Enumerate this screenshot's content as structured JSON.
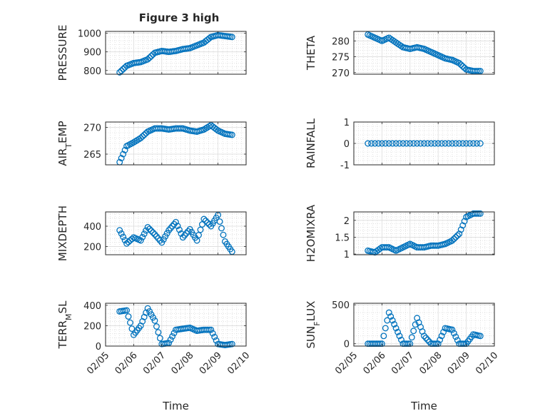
{
  "figure": {
    "title": "Figure 3 high",
    "xlabel": "Time"
  },
  "chart_data": [
    {
      "type": "scatter",
      "ylabel": "PRESSURE",
      "ylim": [
        780,
        1010
      ],
      "yticks": [
        800,
        900,
        1000
      ],
      "grid": true,
      "color": "#0072BD",
      "x": [
        "2017-02-05T12:00",
        "2017-02-05T18:00",
        "2017-02-06T00:00",
        "2017-02-06T06:00",
        "2017-02-06T12:00",
        "2017-02-06T18:00",
        "2017-02-07T00:00",
        "2017-02-07T06:00",
        "2017-02-07T12:00",
        "2017-02-07T18:00",
        "2017-02-08T00:00",
        "2017-02-08T06:00",
        "2017-02-08T12:00",
        "2017-02-08T18:00",
        "2017-02-09T00:00",
        "2017-02-09T06:00",
        "2017-02-09T12:00"
      ],
      "y": [
        790,
        825,
        840,
        845,
        860,
        895,
        905,
        900,
        905,
        915,
        920,
        935,
        950,
        980,
        990,
        985,
        980
      ]
    },
    {
      "type": "scatter",
      "ylabel": "THETA",
      "ylim": [
        269.5,
        283
      ],
      "yticks": [
        270,
        275,
        280
      ],
      "grid": true,
      "color": "#0072BD",
      "x": [
        "2017-02-05T12:00",
        "2017-02-05T18:00",
        "2017-02-06T00:00",
        "2017-02-06T06:00",
        "2017-02-06T12:00",
        "2017-02-06T18:00",
        "2017-02-07T00:00",
        "2017-02-07T06:00",
        "2017-02-07T12:00",
        "2017-02-07T18:00",
        "2017-02-08T00:00",
        "2017-02-08T06:00",
        "2017-02-08T12:00",
        "2017-02-08T18:00",
        "2017-02-09T00:00",
        "2017-02-09T06:00",
        "2017-02-09T12:00"
      ],
      "y": [
        282,
        281,
        280,
        281,
        279.5,
        278,
        277.5,
        278,
        277.5,
        276.5,
        275.5,
        274.5,
        274,
        273,
        271,
        270.5,
        270.5
      ]
    },
    {
      "type": "scatter",
      "ylabel": "AIR_TEMP",
      "ylabel_parts": [
        "AIR",
        "T",
        "EMP"
      ],
      "ylim": [
        263,
        271
      ],
      "yticks": [
        265,
        270
      ],
      "grid": true,
      "color": "#0072BD",
      "x": [
        "2017-02-05T12:00",
        "2017-02-05T18:00",
        "2017-02-06T00:00",
        "2017-02-06T06:00",
        "2017-02-06T12:00",
        "2017-02-06T18:00",
        "2017-02-07T00:00",
        "2017-02-07T06:00",
        "2017-02-07T12:00",
        "2017-02-07T18:00",
        "2017-02-08T00:00",
        "2017-02-08T06:00",
        "2017-02-08T12:00",
        "2017-02-08T18:00",
        "2017-02-09T00:00",
        "2017-02-09T06:00",
        "2017-02-09T12:00"
      ],
      "y": [
        263.5,
        266.5,
        267.2,
        268,
        269.2,
        269.8,
        269.8,
        269.6,
        269.8,
        269.8,
        269.4,
        269.2,
        269.6,
        270.4,
        269.4,
        268.8,
        268.6
      ]
    },
    {
      "type": "scatter",
      "ylabel": "RAINFALL",
      "ylim": [
        -1,
        1
      ],
      "yticks": [
        -1,
        0,
        1
      ],
      "grid": true,
      "color": "#0072BD",
      "x": [
        "2017-02-05T12:00",
        "2017-02-06T00:00",
        "2017-02-06T12:00",
        "2017-02-07T00:00",
        "2017-02-07T12:00",
        "2017-02-08T00:00",
        "2017-02-08T12:00",
        "2017-02-09T00:00",
        "2017-02-09T12:00"
      ],
      "y": [
        0,
        0,
        0,
        0,
        0,
        0,
        0,
        0,
        0
      ]
    },
    {
      "type": "scatter",
      "ylabel": "MIXDEPTH",
      "ylim": [
        120,
        540
      ],
      "yticks": [
        200,
        400
      ],
      "grid": true,
      "color": "#0072BD",
      "x": [
        "2017-02-05T12:00",
        "2017-02-05T18:00",
        "2017-02-06T00:00",
        "2017-02-06T06:00",
        "2017-02-06T12:00",
        "2017-02-06T18:00",
        "2017-02-07T00:00",
        "2017-02-07T06:00",
        "2017-02-07T12:00",
        "2017-02-07T18:00",
        "2017-02-08T00:00",
        "2017-02-08T06:00",
        "2017-02-08T12:00",
        "2017-02-08T18:00",
        "2017-02-09T00:00",
        "2017-02-09T06:00",
        "2017-02-09T12:00"
      ],
      "y": [
        360,
        230,
        290,
        260,
        390,
        320,
        240,
        360,
        440,
        290,
        370,
        260,
        470,
        400,
        510,
        250,
        150
      ]
    },
    {
      "type": "scatter",
      "ylabel": "H2OMIXRA",
      "ylim": [
        0.98,
        2.25
      ],
      "yticks": [
        1,
        1.5,
        2
      ],
      "grid": true,
      "color": "#0072BD",
      "x": [
        "2017-02-05T12:00",
        "2017-02-05T18:00",
        "2017-02-06T00:00",
        "2017-02-06T06:00",
        "2017-02-06T12:00",
        "2017-02-06T18:00",
        "2017-02-07T00:00",
        "2017-02-07T06:00",
        "2017-02-07T12:00",
        "2017-02-07T18:00",
        "2017-02-08T00:00",
        "2017-02-08T06:00",
        "2017-02-08T12:00",
        "2017-02-08T18:00",
        "2017-02-09T00:00",
        "2017-02-09T06:00",
        "2017-02-09T12:00"
      ],
      "y": [
        1.1,
        1.05,
        1.2,
        1.2,
        1.1,
        1.2,
        1.3,
        1.2,
        1.2,
        1.25,
        1.25,
        1.3,
        1.4,
        1.6,
        2.1,
        2.2,
        2.2
      ]
    },
    {
      "type": "scatter",
      "ylabel": "TERR_MSL",
      "ylabel_parts": [
        "TERR",
        "M",
        "SL"
      ],
      "ylim": [
        0,
        420
      ],
      "yticks": [
        0,
        200,
        400
      ],
      "grid": true,
      "color": "#0072BD",
      "x": [
        "2017-02-05T12:00",
        "2017-02-05T18:00",
        "2017-02-06T00:00",
        "2017-02-06T06:00",
        "2017-02-06T12:00",
        "2017-02-06T18:00",
        "2017-02-07T00:00",
        "2017-02-07T06:00",
        "2017-02-07T12:00",
        "2017-02-07T18:00",
        "2017-02-08T00:00",
        "2017-02-08T06:00",
        "2017-02-08T12:00",
        "2017-02-08T18:00",
        "2017-02-09T00:00",
        "2017-02-09T06:00",
        "2017-02-09T12:00"
      ],
      "y": [
        340,
        350,
        110,
        200,
        370,
        250,
        20,
        30,
        160,
        170,
        180,
        150,
        160,
        160,
        20,
        10,
        20
      ]
    },
    {
      "type": "scatter",
      "ylabel": "SUN_FLUX",
      "ylabel_parts": [
        "SUN",
        "F",
        "LUX"
      ],
      "ylim": [
        -30,
        520
      ],
      "yticks": [
        0,
        500
      ],
      "grid": true,
      "color": "#0072BD",
      "x": [
        "2017-02-05T12:00",
        "2017-02-05T18:00",
        "2017-02-06T00:00",
        "2017-02-06T06:00",
        "2017-02-06T12:00",
        "2017-02-06T18:00",
        "2017-02-07T00:00",
        "2017-02-07T06:00",
        "2017-02-07T12:00",
        "2017-02-07T18:00",
        "2017-02-08T00:00",
        "2017-02-08T06:00",
        "2017-02-08T12:00",
        "2017-02-08T18:00",
        "2017-02-09T00:00",
        "2017-02-09T06:00",
        "2017-02-09T12:00"
      ],
      "y": [
        0,
        0,
        0,
        400,
        200,
        0,
        0,
        330,
        100,
        0,
        0,
        200,
        180,
        0,
        0,
        120,
        100
      ]
    }
  ],
  "xaxis": {
    "range": [
      "2017-02-05T00:00",
      "2017-02-10T00:00"
    ],
    "ticks": [
      "2017-02-05",
      "2017-02-06",
      "2017-02-07",
      "2017-02-08",
      "2017-02-09",
      "2017-02-10"
    ],
    "tick_labels": [
      "02/05",
      "02/06",
      "02/07",
      "02/08",
      "02/09",
      "02/10"
    ]
  }
}
